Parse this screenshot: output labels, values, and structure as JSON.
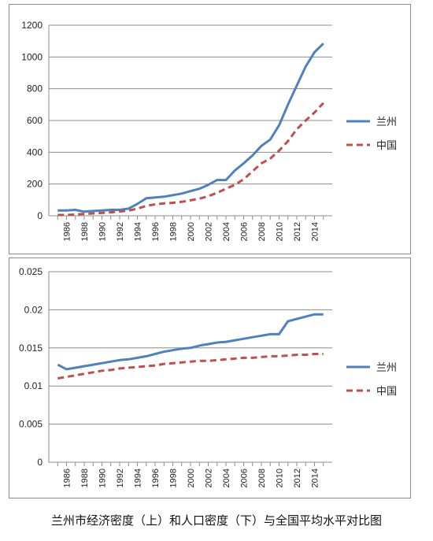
{
  "caption": "兰州市经济密度（上）和人口密度（下）与全国平均水平对比图",
  "chart_data": [
    {
      "type": "line",
      "x": [
        1985,
        1986,
        1987,
        1988,
        1989,
        1990,
        1991,
        1992,
        1993,
        1994,
        1995,
        1996,
        1997,
        1998,
        1999,
        2000,
        2001,
        2002,
        2003,
        2004,
        2005,
        2006,
        2007,
        2008,
        2009,
        2010,
        2011,
        2012,
        2013,
        2014,
        2015
      ],
      "x_tick_labels": [
        "1986",
        "1988",
        "1990",
        "1992",
        "1994",
        "1996",
        "1998",
        "2000",
        "2002",
        "2004",
        "2006",
        "2008",
        "2010",
        "2012",
        "2014"
      ],
      "y_tick_labels": [
        "0",
        "200",
        "400",
        "600",
        "800",
        "1000",
        "1200"
      ],
      "ylim": [
        0,
        1200
      ],
      "grid": true,
      "legend": "right",
      "series": [
        {
          "name": "兰州",
          "color": "#4f81bd",
          "style": "solid",
          "values": [
            33,
            33,
            37,
            26,
            30,
            33,
            37,
            37,
            45,
            75,
            110,
            115,
            120,
            130,
            140,
            155,
            170,
            195,
            225,
            225,
            285,
            330,
            380,
            440,
            480,
            570,
            700,
            820,
            940,
            1030,
            1085
          ]
        },
        {
          "name": "中国",
          "color": "#c0504d",
          "style": "dashed",
          "values": [
            5,
            5,
            8,
            12,
            15,
            18,
            22,
            27,
            32,
            45,
            62,
            72,
            78,
            82,
            88,
            97,
            108,
            123,
            145,
            170,
            195,
            230,
            280,
            330,
            360,
            410,
            470,
            545,
            600,
            650,
            710
          ]
        }
      ]
    },
    {
      "type": "line",
      "x": [
        1985,
        1986,
        1987,
        1988,
        1989,
        1990,
        1991,
        1992,
        1993,
        1994,
        1995,
        1996,
        1997,
        1998,
        1999,
        2000,
        2001,
        2002,
        2003,
        2004,
        2005,
        2006,
        2007,
        2008,
        2009,
        2010,
        2011,
        2012,
        2013,
        2014,
        2015
      ],
      "x_tick_labels": [
        "1986",
        "1988",
        "1990",
        "1992",
        "1994",
        "1996",
        "1998",
        "2000",
        "2002",
        "2004",
        "2006",
        "2008",
        "2010",
        "2012",
        "2014"
      ],
      "y_tick_labels": [
        "0",
        "0.005",
        "0.01",
        "0.015",
        "0.02",
        "0.025"
      ],
      "ylim": [
        0,
        0.025
      ],
      "grid": true,
      "legend": "right",
      "series": [
        {
          "name": "兰州",
          "color": "#4f81bd",
          "style": "solid",
          "values": [
            0.0128,
            0.0122,
            0.0124,
            0.0126,
            0.0128,
            0.013,
            0.0132,
            0.0134,
            0.0135,
            0.0137,
            0.0139,
            0.0142,
            0.0145,
            0.0147,
            0.0149,
            0.015,
            0.0153,
            0.0155,
            0.0157,
            0.0158,
            0.016,
            0.0162,
            0.0164,
            0.0166,
            0.0168,
            0.0168,
            0.0185,
            0.0188,
            0.0191,
            0.0194,
            0.0194
          ]
        },
        {
          "name": "中国",
          "color": "#c0504d",
          "style": "dashed",
          "values": [
            0.011,
            0.0112,
            0.0114,
            0.0116,
            0.0118,
            0.012,
            0.0121,
            0.0123,
            0.0124,
            0.0125,
            0.0126,
            0.0127,
            0.0129,
            0.013,
            0.0131,
            0.0132,
            0.0133,
            0.0133,
            0.0134,
            0.0135,
            0.0136,
            0.0137,
            0.0137,
            0.0138,
            0.0139,
            0.0139,
            0.014,
            0.0141,
            0.0141,
            0.0142,
            0.0142
          ]
        }
      ]
    }
  ]
}
